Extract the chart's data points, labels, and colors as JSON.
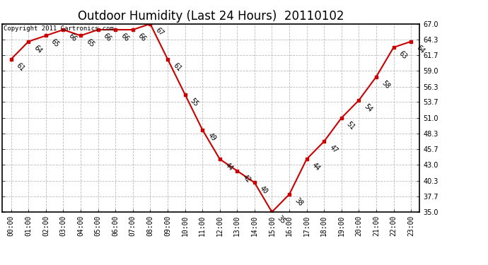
{
  "title": "Outdoor Humidity (Last 24 Hours)  20110102",
  "copyright_text": "Copyright 2011 Cartronics.com",
  "hours": [
    "00:00",
    "01:00",
    "02:00",
    "03:00",
    "04:00",
    "05:00",
    "06:00",
    "07:00",
    "08:00",
    "09:00",
    "10:00",
    "11:00",
    "12:00",
    "13:00",
    "14:00",
    "15:00",
    "16:00",
    "17:00",
    "18:00",
    "19:00",
    "20:00",
    "21:00",
    "22:00",
    "23:00"
  ],
  "values": [
    61,
    64,
    65,
    66,
    65,
    66,
    66,
    66,
    67,
    61,
    55,
    49,
    44,
    42,
    40,
    35,
    38,
    44,
    47,
    51,
    54,
    58,
    63,
    64
  ],
  "line_color": "#cc0000",
  "marker_color": "#cc0000",
  "bg_color": "#ffffff",
  "grid_color": "#bbbbbb",
  "ylim_min": 35.0,
  "ylim_max": 67.0,
  "yticks": [
    35.0,
    37.7,
    40.3,
    43.0,
    45.7,
    48.3,
    51.0,
    53.7,
    56.3,
    59.0,
    61.7,
    64.3,
    67.0
  ],
  "title_fontsize": 12,
  "label_fontsize": 7,
  "tick_fontsize": 7,
  "copyright_fontsize": 6.5
}
